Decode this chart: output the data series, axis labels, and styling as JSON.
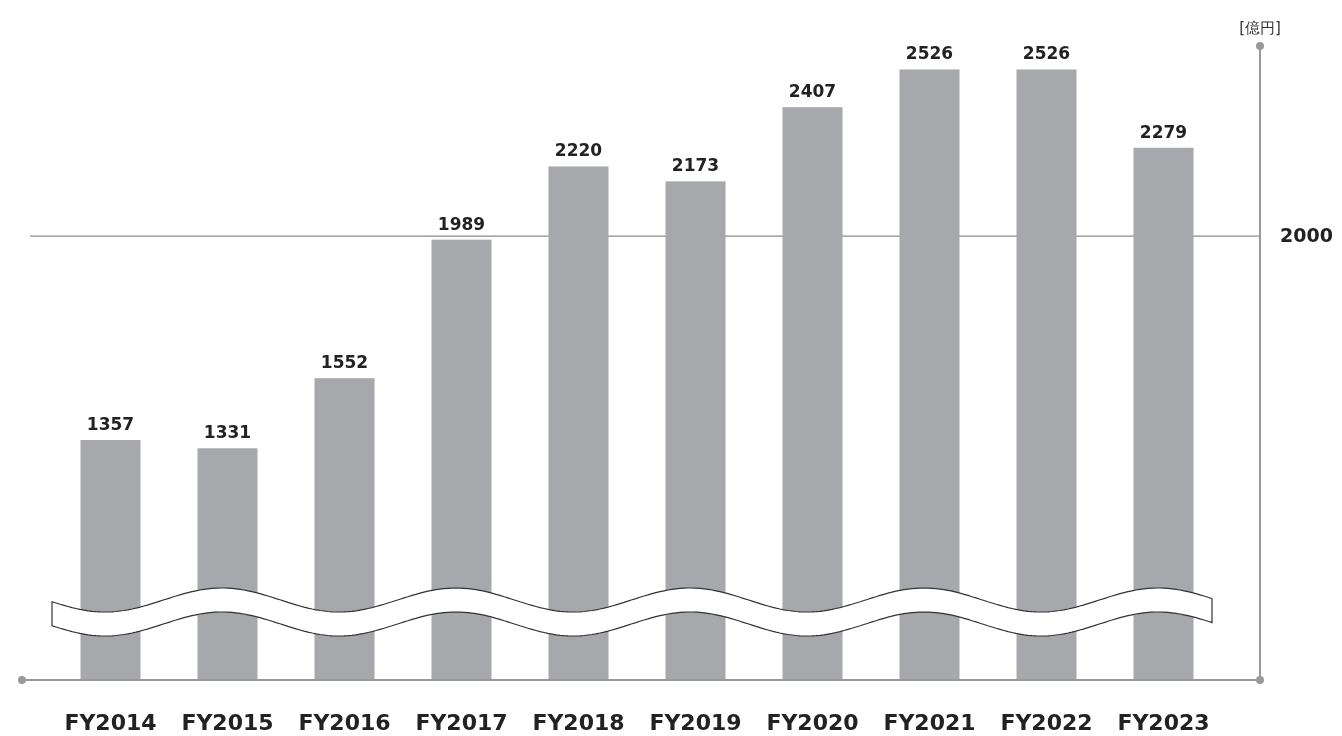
{
  "chart_data": {
    "type": "bar",
    "ylabel": "[億円]",
    "categories": [
      "FY2014",
      "FY2015",
      "FY2016",
      "FY2017",
      "FY2018",
      "FY2019",
      "FY2020",
      "FY2021",
      "FY2022",
      "FY2023"
    ],
    "values": [
      1357,
      1331,
      1552,
      1989,
      2220,
      2173,
      2407,
      2526,
      2526,
      2279
    ],
    "color": "#a7a8ab",
    "ylim": [
      600,
      2600
    ],
    "ref_lines": [
      {
        "axis": "y",
        "value": 2000,
        "label": "2000",
        "color": "#8a8a8a"
      }
    ],
    "data_labels": true
  }
}
